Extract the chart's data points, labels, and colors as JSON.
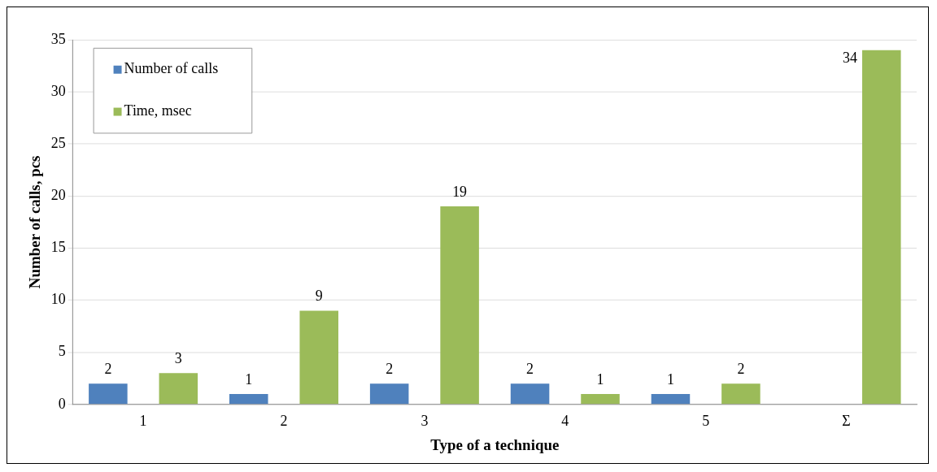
{
  "chart_data": {
    "type": "bar",
    "xlabel": "Type of a technique",
    "ylabel": "Number of calls, pcs",
    "categories": [
      "1",
      "2",
      "3",
      "4",
      "5",
      "Σ"
    ],
    "series": [
      {
        "name": "Number of calls",
        "color": "#4f81bd",
        "values": [
          2,
          1,
          2,
          2,
          1,
          null
        ]
      },
      {
        "name": "Time, msec",
        "color": "#9bbb59",
        "values": [
          3,
          9,
          19,
          1,
          2,
          34
        ]
      }
    ],
    "ylim": [
      0,
      35
    ],
    "yticks": [
      0,
      5,
      10,
      15,
      20,
      25,
      30,
      35
    ],
    "grid": "y",
    "legend": "top left",
    "data_labels": true
  }
}
